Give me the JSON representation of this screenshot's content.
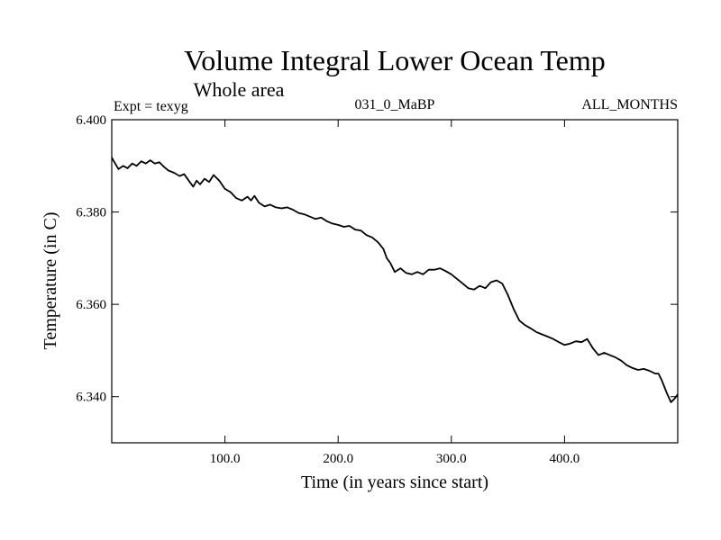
{
  "chart_data": {
    "type": "line",
    "title": "Volume Integral Lower Ocean Temp",
    "subtitle": "Whole area",
    "left_string": "Expt = texyg",
    "center_string": "031_0_MaBP",
    "right_string": "ALL_MONTHS",
    "xlabel": "Time (in years since start)",
    "ylabel": "Temperature (in C)",
    "xlim": [
      0,
      500
    ],
    "ylim": [
      6.33,
      6.4
    ],
    "x_ticks": [
      100,
      200,
      300,
      400
    ],
    "x_tick_labels": [
      "100.0",
      "200.0",
      "300.0",
      "400.0"
    ],
    "y_ticks": [
      6.34,
      6.36,
      6.38,
      6.4
    ],
    "y_tick_labels": [
      "6.340",
      "6.360",
      "6.380",
      "6.400"
    ],
    "grid": false,
    "series": [
      {
        "color": "#000000",
        "x": [
          0,
          3,
          6,
          10,
          14,
          18,
          22,
          26,
          30,
          34,
          38,
          42,
          46,
          50,
          55,
          60,
          64,
          68,
          72,
          75,
          78,
          82,
          86,
          90,
          95,
          100,
          105,
          110,
          115,
          120,
          123,
          126,
          130,
          135,
          140,
          145,
          150,
          155,
          160,
          165,
          170,
          175,
          180,
          185,
          190,
          195,
          200,
          205,
          210,
          215,
          220,
          225,
          230,
          235,
          240,
          243,
          246,
          250,
          255,
          260,
          265,
          270,
          275,
          280,
          285,
          290,
          295,
          300,
          305,
          310,
          315,
          320,
          325,
          330,
          335,
          340,
          345,
          350,
          355,
          360,
          365,
          370,
          375,
          380,
          385,
          390,
          395,
          400,
          405,
          410,
          415,
          420,
          425,
          430,
          435,
          440,
          445,
          450,
          455,
          460,
          465,
          470,
          475,
          480,
          483,
          486,
          490,
          494,
          497,
          500
        ],
        "y": [
          6.3918,
          6.3905,
          6.3893,
          6.39,
          6.3895,
          6.3905,
          6.39,
          6.391,
          6.3905,
          6.3912,
          6.3905,
          6.3908,
          6.3898,
          6.389,
          6.3885,
          6.3878,
          6.3882,
          6.3868,
          6.3855,
          6.3868,
          6.386,
          6.3872,
          6.3865,
          6.388,
          6.3868,
          6.385,
          6.3843,
          6.383,
          6.3825,
          6.3833,
          6.3825,
          6.3835,
          6.382,
          6.3812,
          6.3816,
          6.381,
          6.3808,
          6.381,
          6.3805,
          6.3798,
          6.3795,
          6.379,
          6.3785,
          6.3788,
          6.378,
          6.3775,
          6.3772,
          6.3768,
          6.377,
          6.3762,
          6.376,
          6.375,
          6.3745,
          6.3735,
          6.372,
          6.37,
          6.369,
          6.367,
          6.3678,
          6.3668,
          6.3665,
          6.367,
          6.3665,
          6.3675,
          6.3675,
          6.3678,
          6.3672,
          6.3665,
          6.3655,
          6.3645,
          6.3635,
          6.3632,
          6.364,
          6.3635,
          6.3648,
          6.3652,
          6.3645,
          6.362,
          6.359,
          6.3565,
          6.3555,
          6.3548,
          6.354,
          6.3535,
          6.353,
          6.3525,
          6.3518,
          6.3512,
          6.3515,
          6.352,
          6.3518,
          6.3525,
          6.3505,
          6.349,
          6.3495,
          6.349,
          6.3485,
          6.3478,
          6.3468,
          6.3462,
          6.3458,
          6.346,
          6.3456,
          6.345,
          6.345,
          6.3435,
          6.341,
          6.3388,
          6.3395,
          6.3405
        ]
      }
    ]
  }
}
